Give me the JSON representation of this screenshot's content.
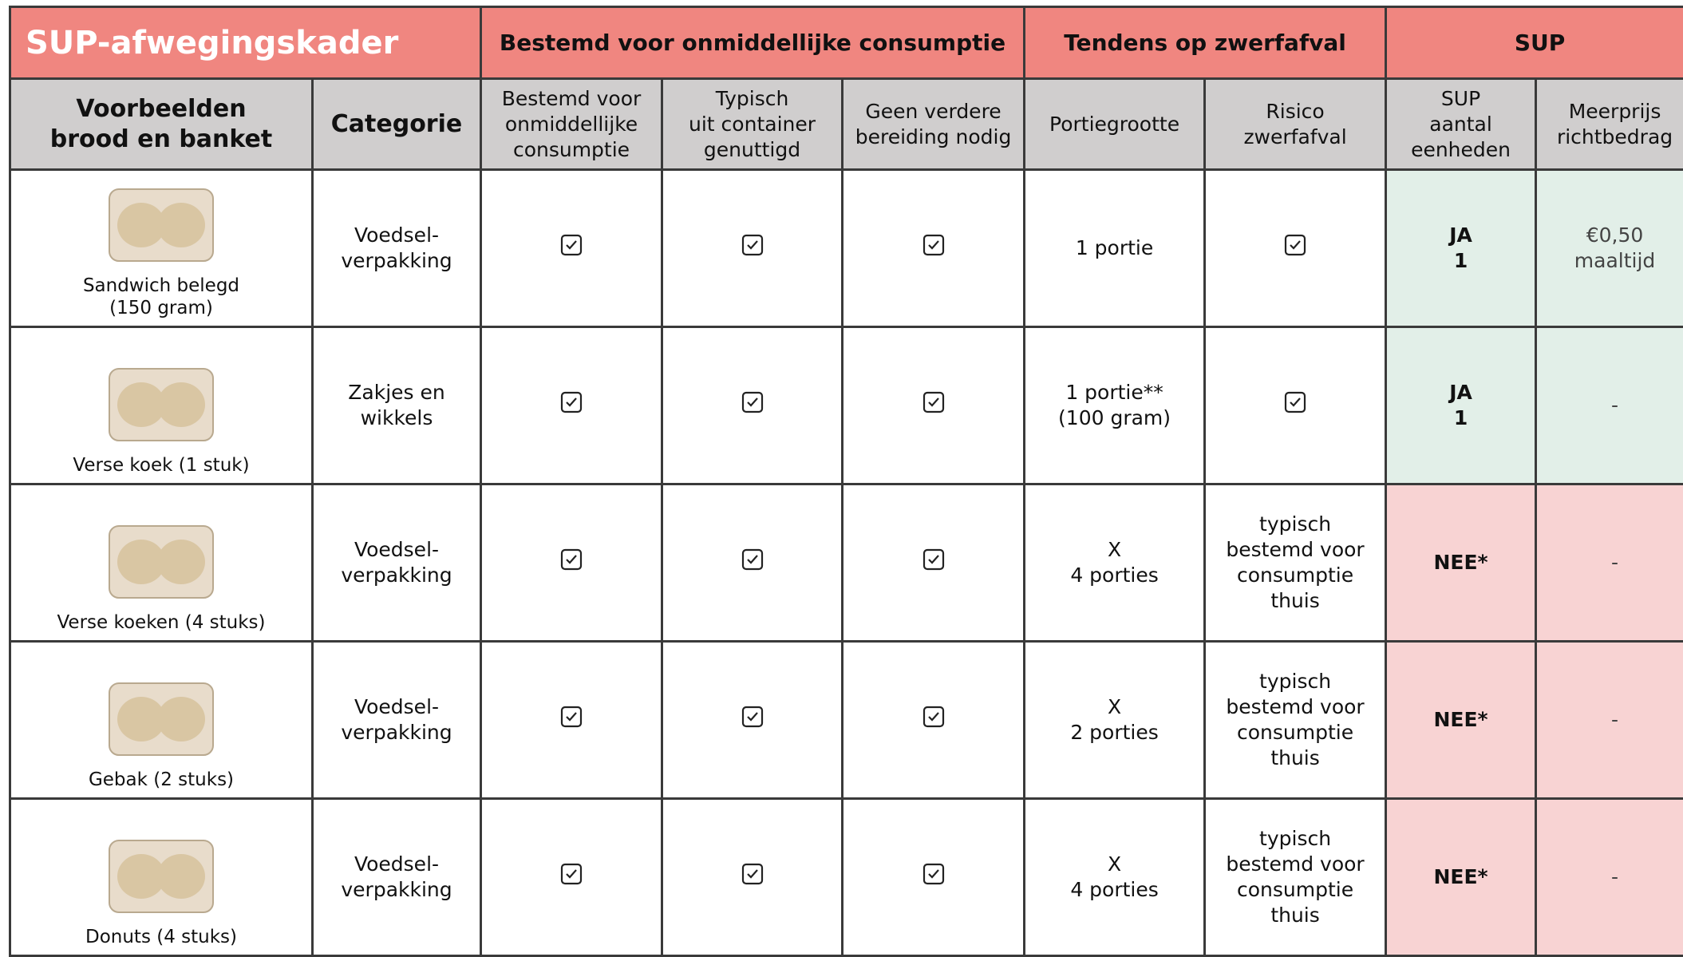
{
  "header": {
    "title": "SUP-afwegingskader",
    "groups": [
      "Bestemd voor onmiddellijke consumptie",
      "Tendens op zwerfafval",
      "SUP"
    ]
  },
  "columns": [
    "Voorbeelden\nbrood en banket",
    "Categorie",
    "Bestemd voor\nonmiddellijke\nconsumptie",
    "Typisch\nuit container\ngenuttigd",
    "Geen verdere\nbereiding nodig",
    "Portiegrootte",
    "Risico\nzwerfafval",
    "SUP\naantal\neenheden",
    "Meerprijs\nrichtbedrag"
  ],
  "rows": [
    {
      "product": "Sandwich belegd\n(150 gram)",
      "category": "Voedsel-\nverpakking",
      "portion": "1 portie",
      "sup": "JA\n1",
      "price": "€0,50\nmaaltijd"
    },
    {
      "product": "Verse koek (1 stuk)",
      "category": "Zakjes en\nwikkels",
      "portion": "1 portie**\n(100 gram)",
      "sup": "JA\n1",
      "price": "-"
    },
    {
      "product": "Verse koeken (4 stuks)",
      "category": "Voedsel-\nverpakking",
      "portion": "X\n4 porties",
      "risk": "typisch\nbestemd voor\nconsumptie\nthuis",
      "sup": "NEE*",
      "price": "-"
    },
    {
      "product": "Gebak (2 stuks)",
      "category": "Voedsel-\nverpakking",
      "portion": "X\n2 porties",
      "risk": "typisch\nbestemd voor\nconsumptie\nthuis",
      "sup": "NEE*",
      "price": "-"
    },
    {
      "product": "Donuts (4 stuks)",
      "category": "Voedsel-\nverpakking",
      "portion": "X\n4 porties",
      "risk": "typisch\nbestemd voor\nconsumptie\nthuis",
      "sup": "NEE*",
      "price": "-"
    }
  ]
}
